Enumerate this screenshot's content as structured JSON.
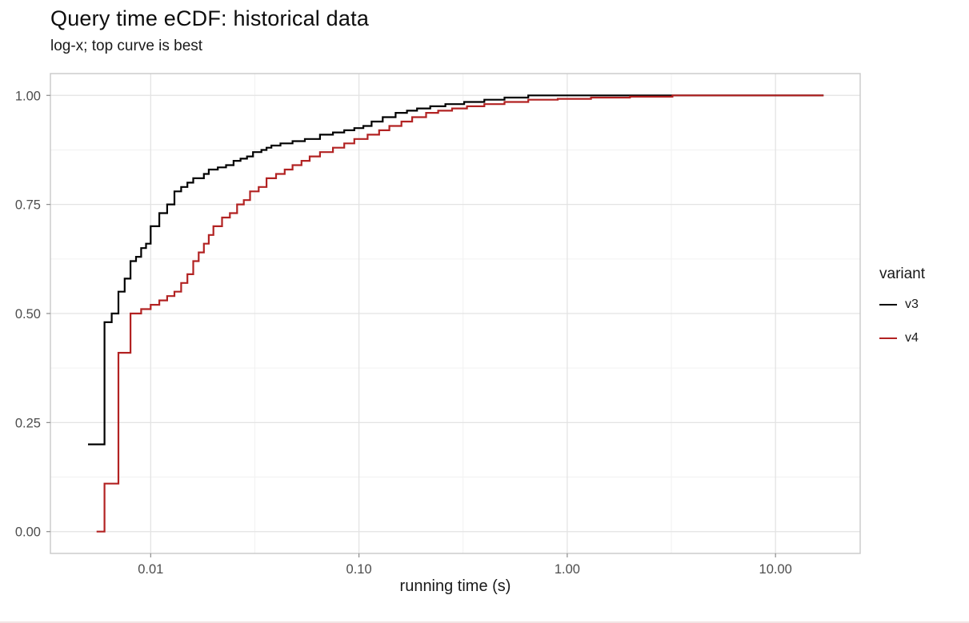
{
  "chart_data": {
    "type": "line",
    "subtype": "ecdf-step",
    "title": "Query time eCDF: historical data",
    "subtitle": "log-x; top curve is best",
    "xlabel": "running time (s)",
    "ylabel": "",
    "x_scale": "log10",
    "x_domain": [
      0.0033,
      25.5
    ],
    "y_domain": [
      -0.05,
      1.05
    ],
    "grid": true,
    "x_ticks": [
      {
        "value": 0.01,
        "label": "0.01"
      },
      {
        "value": 0.1,
        "label": "0.10"
      },
      {
        "value": 1.0,
        "label": "1.00"
      },
      {
        "value": 10.0,
        "label": "10.00"
      }
    ],
    "x_minor": [
      0.00316,
      0.0316,
      0.316,
      3.16
    ],
    "y_ticks": [
      {
        "value": 0.0,
        "label": "0.00"
      },
      {
        "value": 0.25,
        "label": "0.25"
      },
      {
        "value": 0.5,
        "label": "0.50"
      },
      {
        "value": 0.75,
        "label": "0.75"
      },
      {
        "value": 1.0,
        "label": "1.00"
      }
    ],
    "y_minor": [
      0.125,
      0.375,
      0.625,
      0.875
    ],
    "legend": {
      "title": "variant",
      "position": "right"
    },
    "colors": {
      "grid_major": "#e3e3e3",
      "grid_minor": "#f1f1f1",
      "panel_border": "#c9c9c9",
      "tick_mark": "#8c8c8c",
      "tick_label": "#4d4d4d",
      "background": "#ffffff"
    },
    "series": [
      {
        "name": "v3",
        "color": "#000000",
        "points": [
          [
            0.005,
            0.2
          ],
          [
            0.006,
            0.48
          ],
          [
            0.0065,
            0.5
          ],
          [
            0.007,
            0.55
          ],
          [
            0.0075,
            0.58
          ],
          [
            0.008,
            0.62
          ],
          [
            0.0085,
            0.63
          ],
          [
            0.009,
            0.65
          ],
          [
            0.0095,
            0.66
          ],
          [
            0.01,
            0.7
          ],
          [
            0.011,
            0.73
          ],
          [
            0.012,
            0.75
          ],
          [
            0.013,
            0.78
          ],
          [
            0.014,
            0.79
          ],
          [
            0.015,
            0.8
          ],
          [
            0.016,
            0.81
          ],
          [
            0.018,
            0.82
          ],
          [
            0.019,
            0.83
          ],
          [
            0.021,
            0.835
          ],
          [
            0.023,
            0.84
          ],
          [
            0.025,
            0.85
          ],
          [
            0.027,
            0.855
          ],
          [
            0.029,
            0.86
          ],
          [
            0.031,
            0.87
          ],
          [
            0.034,
            0.875
          ],
          [
            0.036,
            0.88
          ],
          [
            0.038,
            0.885
          ],
          [
            0.042,
            0.89
          ],
          [
            0.048,
            0.895
          ],
          [
            0.055,
            0.9
          ],
          [
            0.065,
            0.91
          ],
          [
            0.075,
            0.915
          ],
          [
            0.085,
            0.92
          ],
          [
            0.095,
            0.925
          ],
          [
            0.105,
            0.93
          ],
          [
            0.115,
            0.94
          ],
          [
            0.13,
            0.95
          ],
          [
            0.15,
            0.96
          ],
          [
            0.17,
            0.965
          ],
          [
            0.19,
            0.97
          ],
          [
            0.22,
            0.975
          ],
          [
            0.26,
            0.98
          ],
          [
            0.32,
            0.985
          ],
          [
            0.4,
            0.99
          ],
          [
            0.5,
            0.995
          ],
          [
            0.65,
            1.0
          ],
          [
            17,
            1.0
          ]
        ]
      },
      {
        "name": "v4",
        "color": "#b22222",
        "points": [
          [
            0.0055,
            0.0
          ],
          [
            0.006,
            0.11
          ],
          [
            0.007,
            0.41
          ],
          [
            0.008,
            0.5
          ],
          [
            0.009,
            0.51
          ],
          [
            0.01,
            0.52
          ],
          [
            0.011,
            0.53
          ],
          [
            0.012,
            0.54
          ],
          [
            0.013,
            0.55
          ],
          [
            0.014,
            0.57
          ],
          [
            0.015,
            0.59
          ],
          [
            0.016,
            0.62
          ],
          [
            0.017,
            0.64
          ],
          [
            0.018,
            0.66
          ],
          [
            0.019,
            0.68
          ],
          [
            0.02,
            0.7
          ],
          [
            0.022,
            0.72
          ],
          [
            0.024,
            0.73
          ],
          [
            0.026,
            0.75
          ],
          [
            0.028,
            0.76
          ],
          [
            0.03,
            0.78
          ],
          [
            0.033,
            0.79
          ],
          [
            0.036,
            0.81
          ],
          [
            0.04,
            0.82
          ],
          [
            0.044,
            0.83
          ],
          [
            0.048,
            0.84
          ],
          [
            0.053,
            0.85
          ],
          [
            0.058,
            0.86
          ],
          [
            0.065,
            0.87
          ],
          [
            0.075,
            0.88
          ],
          [
            0.085,
            0.89
          ],
          [
            0.095,
            0.9
          ],
          [
            0.11,
            0.91
          ],
          [
            0.125,
            0.92
          ],
          [
            0.14,
            0.93
          ],
          [
            0.16,
            0.94
          ],
          [
            0.18,
            0.95
          ],
          [
            0.21,
            0.96
          ],
          [
            0.24,
            0.965
          ],
          [
            0.28,
            0.97
          ],
          [
            0.33,
            0.975
          ],
          [
            0.4,
            0.98
          ],
          [
            0.5,
            0.985
          ],
          [
            0.65,
            0.99
          ],
          [
            0.9,
            0.992
          ],
          [
            1.3,
            0.995
          ],
          [
            2.0,
            0.997
          ],
          [
            3.2,
            1.0
          ],
          [
            17,
            1.0
          ]
        ]
      }
    ]
  }
}
